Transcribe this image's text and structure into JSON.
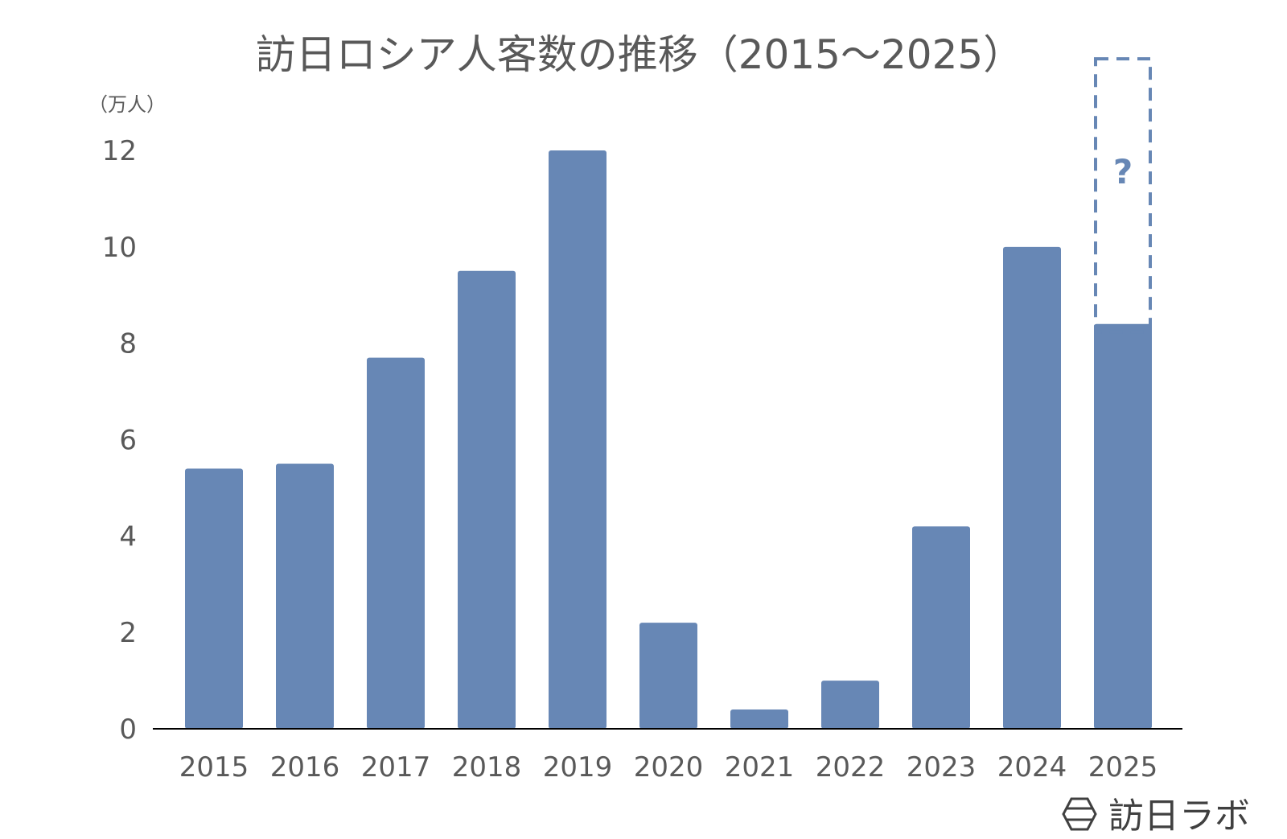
{
  "chart_data": {
    "type": "bar",
    "title": "訪日ロシア人客数の推移（2015～2025）",
    "ylabel": "（万人）",
    "xlabel": "",
    "categories": [
      "2015",
      "2016",
      "2017",
      "2018",
      "2019",
      "2020",
      "2021",
      "2022",
      "2023",
      "2024",
      "2025"
    ],
    "values": [
      5.4,
      5.5,
      7.7,
      9.5,
      12.0,
      2.2,
      0.4,
      1.0,
      4.2,
      10.0,
      8.4
    ],
    "ylim": [
      0,
      12
    ],
    "yticks": [
      "0",
      "2",
      "4",
      "6",
      "8",
      "10",
      "12"
    ],
    "grid": false,
    "projection": {
      "category": "2025",
      "from": 8.4,
      "to": 13.9,
      "label": "?"
    },
    "bar_color": "#6787b5"
  },
  "brand": {
    "name": "訪日ラボ",
    "icon": "hexagon-logo-icon"
  }
}
